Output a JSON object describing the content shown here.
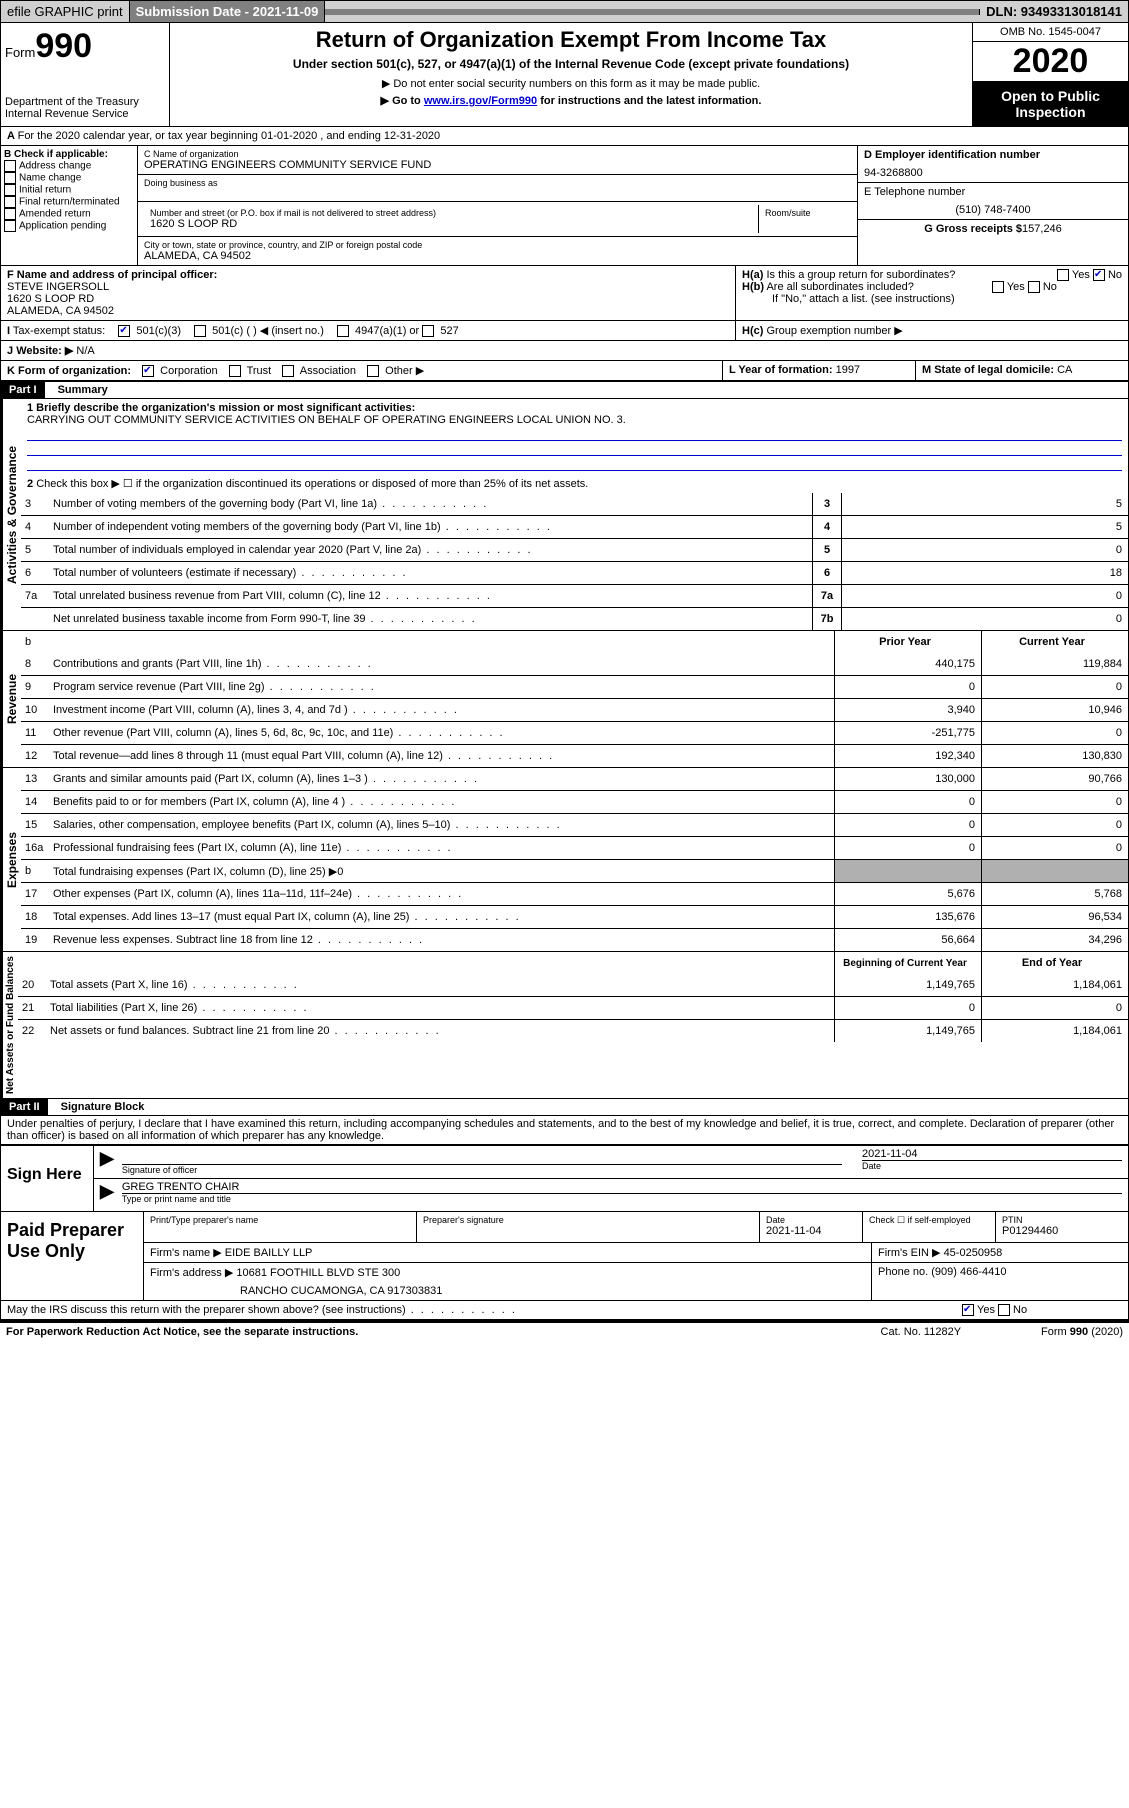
{
  "topbar": {
    "efile": "efile GRAPHIC print",
    "submission_label": "Submission Date - 2021-11-09",
    "dln": "DLN: 93493313018141"
  },
  "header": {
    "form_prefix": "Form",
    "form_number": "990",
    "dept1": "Department of the Treasury",
    "dept2": "Internal Revenue Service",
    "title": "Return of Organization Exempt From Income Tax",
    "subtitle": "Under section 501(c), 527, or 4947(a)(1) of the Internal Revenue Code (except private foundations)",
    "note1": "▶ Do not enter social security numbers on this form as it may be made public.",
    "note2_pre": "▶ Go to ",
    "note2_link": "www.irs.gov/Form990",
    "note2_post": " for instructions and the latest information.",
    "omb": "OMB No. 1545-0047",
    "year": "2020",
    "open": "Open to Public Inspection"
  },
  "line_a": "For the 2020 calendar year, or tax year beginning 01-01-2020   , and ending 12-31-2020",
  "box_b": {
    "label": "B Check if applicable:",
    "opts": [
      "Address change",
      "Name change",
      "Initial return",
      "Final return/terminated",
      "Amended return",
      "Application pending"
    ]
  },
  "box_c": {
    "name_label": "C Name of organization",
    "name": "OPERATING ENGINEERS COMMUNITY SERVICE FUND",
    "dba_label": "Doing business as",
    "addr_label": "Number and street (or P.O. box if mail is not delivered to street address)",
    "room_suite": "Room/suite",
    "addr": "1620 S LOOP RD",
    "city_label": "City or town, state or province, country, and ZIP or foreign postal code",
    "city": "ALAMEDA, CA  94502"
  },
  "box_d": {
    "label": "D Employer identification number",
    "val": "94-3268800"
  },
  "box_e": {
    "label": "E Telephone number",
    "val": "(510) 748-7400"
  },
  "box_g": {
    "label": "G Gross receipts $",
    "val": "157,246"
  },
  "box_f": {
    "label": "F  Name and address of principal officer:",
    "name": "STEVE INGERSOLL",
    "addr1": "1620 S LOOP RD",
    "addr2": "ALAMEDA, CA  94502"
  },
  "box_h": {
    "a": "Is this a group return for subordinates?",
    "b": "Are all subordinates included?",
    "b_note": "If \"No,\" attach a list. (see instructions)",
    "c": "Group exemption number ▶"
  },
  "tax_status": {
    "label": "Tax-exempt status:",
    "o1": "501(c)(3)",
    "o2": "501(c) (  ) ◀ (insert no.)",
    "o3": "4947(a)(1) or",
    "o4": "527"
  },
  "website": {
    "label": "Website: ▶",
    "val": "N/A"
  },
  "box_k": "K Form of organization:",
  "k_opts": [
    "Corporation",
    "Trust",
    "Association",
    "Other ▶"
  ],
  "box_l": {
    "label": "L Year of formation:",
    "val": "1997"
  },
  "box_m": {
    "label": "M State of legal domicile:",
    "val": "CA"
  },
  "part1": {
    "title": "Part I",
    "name": "Summary",
    "q1_label": "1  Briefly describe the organization's mission or most significant activities:",
    "q1_val": "CARRYING OUT COMMUNITY SERVICE ACTIVITIES ON BEHALF OF OPERATING ENGINEERS LOCAL UNION NO. 3.",
    "q2": "Check this box ▶ ☐  if the organization discontinued its operations or disposed of more than 25% of its net assets.",
    "sections": {
      "gov": "Activities & Governance",
      "rev": "Revenue",
      "exp": "Expenses",
      "net": "Net Assets or Fund Balances"
    },
    "lines_gov": [
      {
        "n": "3",
        "t": "Number of voting members of the governing body (Part VI, line 1a)",
        "b": "3",
        "v": "5"
      },
      {
        "n": "4",
        "t": "Number of independent voting members of the governing body (Part VI, line 1b)",
        "b": "4",
        "v": "5"
      },
      {
        "n": "5",
        "t": "Total number of individuals employed in calendar year 2020 (Part V, line 2a)",
        "b": "5",
        "v": "0"
      },
      {
        "n": "6",
        "t": "Total number of volunteers (estimate if necessary)",
        "b": "6",
        "v": "18"
      },
      {
        "n": "7a",
        "t": "Total unrelated business revenue from Part VIII, column (C), line 12",
        "b": "7a",
        "v": "0"
      },
      {
        "n": "",
        "t": "Net unrelated business taxable income from Form 990-T, line 39",
        "b": "7b",
        "v": "0"
      }
    ],
    "b_row": "b",
    "col_prior": "Prior Year",
    "col_current": "Current Year",
    "col_begin": "Beginning of Current Year",
    "col_end": "End of Year",
    "lines_rev": [
      {
        "n": "8",
        "t": "Contributions and grants (Part VIII, line 1h)",
        "p": "440,175",
        "c": "119,884"
      },
      {
        "n": "9",
        "t": "Program service revenue (Part VIII, line 2g)",
        "p": "0",
        "c": "0"
      },
      {
        "n": "10",
        "t": "Investment income (Part VIII, column (A), lines 3, 4, and 7d )",
        "p": "3,940",
        "c": "10,946"
      },
      {
        "n": "11",
        "t": "Other revenue (Part VIII, column (A), lines 5, 6d, 8c, 9c, 10c, and 11e)",
        "p": "-251,775",
        "c": "0"
      },
      {
        "n": "12",
        "t": "Total revenue—add lines 8 through 11 (must equal Part VIII, column (A), line 12)",
        "p": "192,340",
        "c": "130,830"
      }
    ],
    "lines_exp": [
      {
        "n": "13",
        "t": "Grants and similar amounts paid (Part IX, column (A), lines 1–3 )",
        "p": "130,000",
        "c": "90,766"
      },
      {
        "n": "14",
        "t": "Benefits paid to or for members (Part IX, column (A), line 4 )",
        "p": "0",
        "c": "0"
      },
      {
        "n": "15",
        "t": "Salaries, other compensation, employee benefits (Part IX, column (A), lines 5–10)",
        "p": "0",
        "c": "0"
      },
      {
        "n": "16a",
        "t": "Professional fundraising fees (Part IX, column (A), line 11e)",
        "p": "0",
        "c": "0"
      },
      {
        "n": "b",
        "t": "Total fundraising expenses (Part IX, column (D), line 25) ▶0",
        "p": "",
        "c": "",
        "shade": true
      },
      {
        "n": "17",
        "t": "Other expenses (Part IX, column (A), lines 11a–11d, 11f–24e)",
        "p": "5,676",
        "c": "5,768"
      },
      {
        "n": "18",
        "t": "Total expenses. Add lines 13–17 (must equal Part IX, column (A), line 25)",
        "p": "135,676",
        "c": "96,534"
      },
      {
        "n": "19",
        "t": "Revenue less expenses. Subtract line 18 from line 12",
        "p": "56,664",
        "c": "34,296"
      }
    ],
    "lines_net": [
      {
        "n": "20",
        "t": "Total assets (Part X, line 16)",
        "p": "1,149,765",
        "c": "1,184,061"
      },
      {
        "n": "21",
        "t": "Total liabilities (Part X, line 26)",
        "p": "0",
        "c": "0"
      },
      {
        "n": "22",
        "t": "Net assets or fund balances. Subtract line 21 from line 20",
        "p": "1,149,765",
        "c": "1,184,061"
      }
    ]
  },
  "part2": {
    "title": "Part II",
    "name": "Signature Block",
    "perjury": "Under penalties of perjury, I declare that I have examined this return, including accompanying schedules and statements, and to the best of my knowledge and belief, it is true, correct, and complete. Declaration of preparer (other than officer) is based on all information of which preparer has any knowledge."
  },
  "sign": {
    "here": "Sign Here",
    "sig_officer": "Signature of officer",
    "date_label": "Date",
    "date": "2021-11-04",
    "name": "GREG TRENTO  CHAIR",
    "type_label": "Type or print name and title"
  },
  "paid": {
    "label": "Paid Preparer Use Only",
    "h1": "Print/Type preparer's name",
    "h2": "Preparer's signature",
    "h3": "Date",
    "date": "2021-11-04",
    "h4": "Check ☐  if self-employed",
    "h5": "PTIN",
    "ptin": "P01294460",
    "firm_name_l": "Firm's name    ▶",
    "firm_name": "EIDE BAILLY LLP",
    "firm_ein_l": "Firm's EIN ▶",
    "firm_ein": "45-0250958",
    "firm_addr_l": "Firm's address ▶",
    "firm_addr1": "10681 FOOTHILL BLVD STE 300",
    "firm_addr2": "RANCHO CUCAMONGA, CA  917303831",
    "phone_l": "Phone no.",
    "phone": "(909) 466-4410"
  },
  "irs_discuss": "May the IRS discuss this return with the preparer shown above? (see instructions)",
  "footer": {
    "pra": "For Paperwork Reduction Act Notice, see the separate instructions.",
    "cat": "Cat. No. 11282Y",
    "form": "Form 990 (2020)"
  },
  "yes": "Yes",
  "no": "No"
}
